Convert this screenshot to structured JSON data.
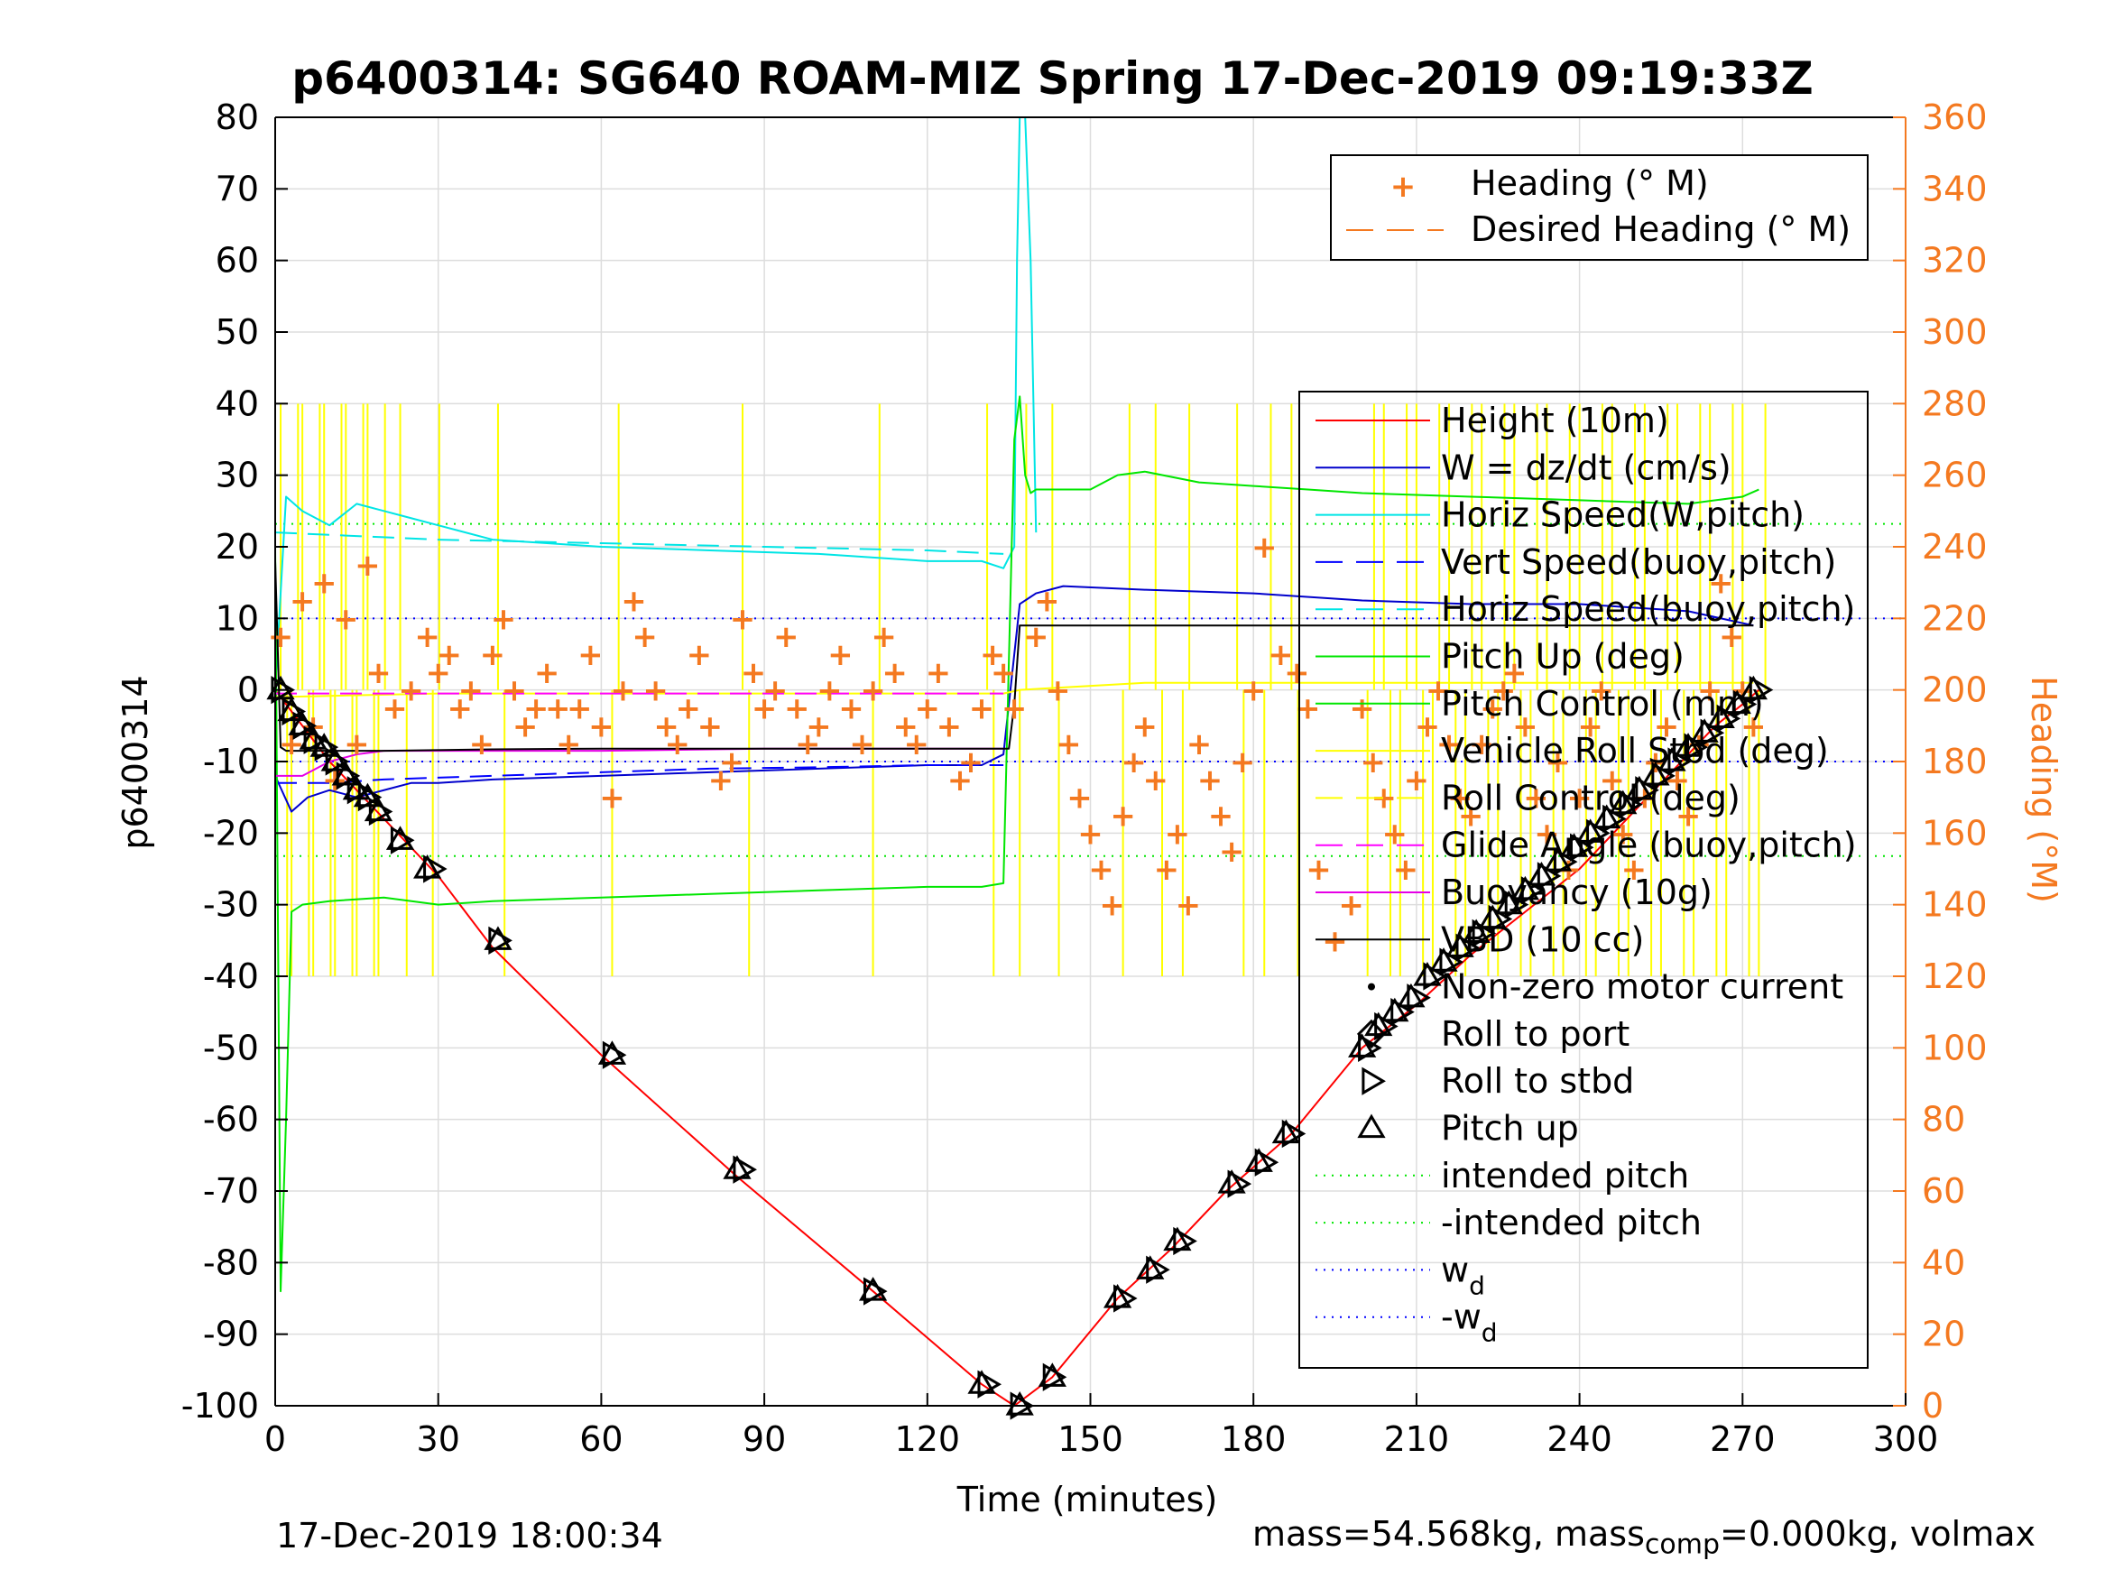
{
  "title": "p6400314: SG640 ROAM-MIZ Spring 17-Dec-2019 09:19:33Z",
  "footer_left": "17-Dec-2019 18:00:34",
  "footer_right": {
    "part1": "mass=54.568kg, mass",
    "sub": "comp",
    "part2": "=0.000kg, volmax"
  },
  "colors": {
    "height": "#ff0000",
    "w": "#0000cc",
    "horiz_speed": "#00e5e5",
    "vert_speed": "#0000ff",
    "pitch": "#00e600",
    "roll": "#ffff00",
    "glide": "#ff00ff",
    "buoy": "#e600e6",
    "vbd": "#000000",
    "heading": "#f47920",
    "grid": "#dddddd",
    "axis": "#000000"
  },
  "chart_data": {
    "type": "line",
    "xlabel": "Time (minutes)",
    "ylabel": "p6400314",
    "y2label": "Heading (°M)",
    "xlim": [
      0,
      300
    ],
    "ylim": [
      -100,
      80
    ],
    "y2lim": [
      0,
      360
    ],
    "xticks": [
      0,
      30,
      60,
      90,
      120,
      150,
      180,
      210,
      240,
      270,
      300
    ],
    "yticks": [
      -100,
      -90,
      -80,
      -70,
      -60,
      -50,
      -40,
      -30,
      -20,
      -10,
      0,
      10,
      20,
      30,
      40,
      50,
      60,
      70,
      80
    ],
    "y2ticks": [
      0,
      20,
      40,
      60,
      80,
      100,
      120,
      140,
      160,
      180,
      200,
      220,
      240,
      260,
      280,
      300,
      320,
      340,
      360
    ],
    "grid": true,
    "legends": [
      {
        "position": "top-right",
        "entries": [
          "Heading (° M)",
          "Desired Heading (° M)"
        ]
      },
      {
        "position": "right",
        "entries": [
          "Height (10m)",
          "W = dz/dt (cm/s)",
          "Horiz Speed(W,pitch)",
          "Vert Speed(buoy,pitch)",
          "Horiz Speed(buoy,pitch)",
          "Pitch Up (deg)",
          "Pitch Control (mm)",
          "Vehicle Roll Stbd (deg)",
          "Roll Control (deg)",
          "Glide Angle (buoy,pitch)",
          "Buoyancy (10g)",
          "VBD (10 cc)",
          "Non-zero motor current",
          "Roll to port",
          "Roll to stbd",
          "Pitch up",
          "intended pitch",
          "-intended pitch",
          "w",
          "-w"
        ],
        "subscripts": {
          "18": "d",
          "19": "d"
        }
      }
    ],
    "series": [
      {
        "name": "Height (10m)",
        "x": [
          0,
          5,
          10,
          20,
          30,
          40,
          60,
          85,
          110,
          130,
          136,
          143,
          155,
          165,
          175,
          187,
          200,
          210,
          220,
          230,
          240,
          250,
          260,
          265,
          270,
          273
        ],
        "y": [
          0,
          -5,
          -10,
          -18,
          -26,
          -36,
          -51,
          -68,
          -84,
          -97,
          -100,
          -96,
          -85,
          -78,
          -70,
          -62,
          -50,
          -44,
          -37,
          -31,
          -25,
          -17,
          -9,
          -5,
          -2,
          0
        ]
      },
      {
        "name": "W = dz/dt (cm/s)",
        "x": [
          0,
          3,
          6,
          10,
          15,
          20,
          25,
          30,
          40,
          60,
          80,
          100,
          120,
          130,
          134,
          137,
          140,
          145,
          160,
          180,
          200,
          220,
          240,
          260,
          272
        ],
        "y": [
          -12,
          -17,
          -15,
          -14,
          -15,
          -14,
          -13,
          -13,
          -12.5,
          -12,
          -11.5,
          -11,
          -10.5,
          -10.5,
          -9,
          12,
          13.5,
          14.5,
          14,
          13.5,
          12.5,
          12,
          12,
          11,
          9
        ]
      },
      {
        "name": "Horiz Speed(W,pitch)",
        "x": [
          0,
          2,
          5,
          10,
          15,
          20,
          25,
          30,
          40,
          50,
          60,
          80,
          100,
          120,
          130,
          134,
          136,
          136.5,
          137,
          138,
          139,
          140
        ],
        "y": [
          0,
          27,
          25,
          23,
          26,
          25,
          24,
          23,
          21,
          20.5,
          20,
          19.5,
          19,
          18,
          18,
          17,
          20,
          60,
          85,
          85,
          60,
          22
        ]
      },
      {
        "name": "Vert Speed(buoy,pitch)",
        "x": [
          0,
          10,
          20,
          40,
          60,
          80,
          100,
          120,
          134
        ],
        "y": [
          -13,
          -13,
          -12.5,
          -12,
          -11.5,
          -11,
          -10.8,
          -10.5,
          -10.5
        ]
      },
      {
        "name": "Horiz Speed(buoy,pitch)",
        "x": [
          0,
          30,
          60,
          90,
          120,
          134
        ],
        "y": [
          22,
          21,
          20.5,
          20,
          19.5,
          19
        ]
      },
      {
        "name": "Pitch Up (deg)",
        "x": [
          0,
          1,
          2,
          3,
          5,
          10,
          20,
          30,
          40,
          60,
          80,
          100,
          120,
          130,
          134,
          136,
          137,
          138,
          139,
          140,
          150,
          155,
          160,
          170,
          180,
          190,
          200,
          220,
          240,
          260,
          270,
          273
        ],
        "y": [
          20,
          -84,
          -60,
          -31,
          -30,
          -29.5,
          -29,
          -30,
          -29.5,
          -29,
          -28.5,
          -28,
          -27.5,
          -27.5,
          -27,
          35,
          41,
          30,
          27.5,
          28,
          28,
          30,
          30.5,
          29,
          28.5,
          28,
          27.5,
          27,
          26.5,
          26,
          27,
          28
        ]
      },
      {
        "name": "Roll Control (deg)",
        "x": [
          0,
          30,
          60,
          90,
          120,
          134,
          137,
          160,
          200,
          240,
          272
        ],
        "y": [
          -1,
          -0.5,
          -0.5,
          -0.5,
          -0.5,
          -0.5,
          0,
          1,
          1,
          1,
          1
        ]
      },
      {
        "name": "Glide Angle (buoy,pitch)",
        "x": [
          0,
          30,
          60,
          90,
          120,
          134
        ],
        "y": [
          -0.5,
          -0.5,
          -0.5,
          -0.5,
          -0.5,
          -0.5
        ]
      },
      {
        "name": "Buoyancy (10g)",
        "x": [
          0,
          5,
          10,
          15,
          20,
          30,
          60,
          90,
          120,
          134
        ],
        "y": [
          -12,
          -12,
          -10,
          -9,
          -8.5,
          -8.5,
          -8.5,
          -8.2,
          -8.2,
          -8.2
        ]
      },
      {
        "name": "VBD (10 cc)",
        "x": [
          0,
          1,
          2,
          10,
          20,
          40,
          60,
          90,
          120,
          134,
          135,
          136,
          137,
          140,
          180,
          220,
          260,
          272
        ],
        "y": [
          18,
          -8,
          -8.5,
          -8.5,
          -8.5,
          -8.3,
          -8.2,
          -8.2,
          -8.2,
          -8.2,
          -8.2,
          -2,
          9,
          9,
          9,
          9,
          9,
          9
        ]
      },
      {
        "name": "Heading (° M)",
        "axis": "right",
        "x": [
          1,
          3,
          5,
          7,
          9,
          11,
          13,
          15,
          17,
          19,
          22,
          25,
          28,
          30,
          32,
          34,
          36,
          38,
          40,
          42,
          44,
          46,
          48,
          50,
          52,
          54,
          56,
          58,
          60,
          62,
          64,
          66,
          68,
          70,
          72,
          74,
          76,
          78,
          80,
          82,
          84,
          86,
          88,
          90,
          92,
          94,
          96,
          98,
          100,
          102,
          104,
          106,
          108,
          110,
          112,
          114,
          116,
          118,
          120,
          122,
          124,
          126,
          128,
          130,
          132,
          134,
          136,
          140,
          142,
          144,
          146,
          148,
          150,
          152,
          154,
          156,
          158,
          160,
          162,
          164,
          166,
          168,
          170,
          172,
          174,
          176,
          178,
          180,
          182,
          185,
          188,
          190,
          192,
          195,
          198,
          200,
          202,
          204,
          206,
          208,
          210,
          212,
          214,
          216,
          218,
          220,
          222,
          224,
          226,
          228,
          230,
          232,
          234,
          236,
          238,
          240,
          242,
          244,
          246,
          248,
          250,
          252,
          254,
          256,
          258,
          260,
          262,
          264,
          266,
          268,
          270,
          272
        ],
        "y": [
          215,
          185,
          225,
          190,
          230,
          175,
          220,
          185,
          235,
          205,
          195,
          200,
          215,
          205,
          210,
          195,
          200,
          185,
          210,
          220,
          200,
          190,
          195,
          205,
          195,
          185,
          195,
          210,
          190,
          170,
          200,
          225,
          215,
          200,
          190,
          185,
          195,
          210,
          190,
          175,
          180,
          220,
          205,
          195,
          200,
          215,
          195,
          185,
          190,
          200,
          210,
          195,
          185,
          200,
          215,
          205,
          190,
          185,
          195,
          205,
          190,
          175,
          180,
          195,
          210,
          205,
          195,
          215,
          225,
          200,
          185,
          170,
          160,
          150,
          140,
          165,
          180,
          190,
          175,
          150,
          160,
          140,
          185,
          175,
          165,
          155,
          180,
          200,
          240,
          210,
          205,
          195,
          150,
          130,
          140,
          195,
          180,
          170,
          160,
          150,
          175,
          190,
          200,
          185,
          170,
          165,
          185,
          195,
          200,
          205,
          190,
          170,
          160,
          180,
          150,
          170,
          190,
          200,
          175,
          160,
          150,
          170,
          180,
          190,
          175,
          165,
          185,
          200,
          230,
          215,
          200,
          190
        ]
      },
      {
        "name": "Roll to stbd",
        "marker": "triangle-right",
        "x": [
          1,
          3,
          5,
          7,
          9,
          11,
          13,
          15,
          17,
          19,
          23,
          29,
          41,
          62,
          86,
          110,
          131,
          137,
          143,
          156,
          162,
          167,
          177,
          182,
          187,
          201,
          204,
          207,
          210,
          213,
          216,
          219,
          222,
          225,
          228,
          231,
          234,
          237,
          240,
          243,
          246,
          249,
          252,
          255,
          258,
          261,
          264,
          267,
          270,
          273
        ],
        "y": [
          0,
          -3,
          -5,
          -7,
          -8,
          -10,
          -12,
          -14,
          -15,
          -17,
          -21,
          -25,
          -35,
          -51,
          -67,
          -84,
          -97,
          -100,
          -96,
          -85,
          -81,
          -77,
          -69,
          -66,
          -62,
          -50,
          -47,
          -45,
          -43,
          -40,
          -38,
          -36,
          -34,
          -32,
          -30,
          -28,
          -26,
          -24,
          -22,
          -20,
          -18,
          -16,
          -14,
          -12,
          -10,
          -8,
          -6,
          -4,
          -2,
          0
        ]
      },
      {
        "name": "Pitch up",
        "marker": "triangle-up",
        "x": [
          1,
          3,
          5,
          7,
          9,
          11,
          13,
          15,
          17,
          19,
          23,
          28,
          41,
          62,
          85,
          110,
          130,
          137,
          143,
          155,
          161,
          166,
          176,
          181,
          186,
          200,
          203,
          206,
          209,
          212,
          215,
          218,
          221,
          224,
          227,
          230,
          233,
          236,
          239,
          242,
          245,
          248,
          251,
          254,
          257,
          260,
          263,
          266,
          269,
          272
        ],
        "y": [
          0,
          -3,
          -5,
          -7,
          -8,
          -10,
          -12,
          -14,
          -15,
          -17,
          -21,
          -25,
          -35,
          -51,
          -67,
          -84,
          -97,
          -100,
          -96,
          -85,
          -81,
          -77,
          -69,
          -66,
          -62,
          -50,
          -47,
          -45,
          -43,
          -40,
          -38,
          -36,
          -34,
          -32,
          -30,
          -28,
          -26,
          -24,
          -22,
          -20,
          -18,
          -16,
          -14,
          -12,
          -10,
          -8,
          -6,
          -4,
          -2,
          0
        ]
      }
    ],
    "reference_lines": [
      {
        "name": "intended pitch",
        "y": 23.2,
        "style": "dotted",
        "color": "#00e600"
      },
      {
        "name": "-intended pitch",
        "y": -23.2,
        "style": "dotted",
        "color": "#00e600"
      },
      {
        "name": "w_d",
        "y": 10,
        "style": "dotted",
        "color": "#0000ff"
      },
      {
        "name": "-w_d",
        "y": -10,
        "style": "dotted",
        "color": "#0000ff"
      }
    ]
  }
}
